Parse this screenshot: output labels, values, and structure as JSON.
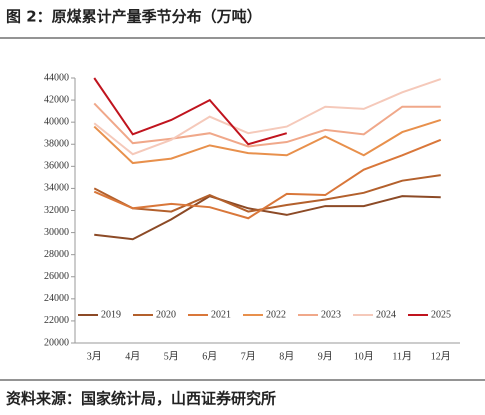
{
  "chart_data": {
    "type": "line",
    "title": "图 2：原煤累计产量季节分布（万吨）",
    "source": "资料来源：国家统计局，山西证券研究所",
    "categories": [
      "3月",
      "4月",
      "5月",
      "6月",
      "7月",
      "8月",
      "9月",
      "10月",
      "11月",
      "12月"
    ],
    "series": [
      {
        "name": "2019",
        "color": "#8c4a26",
        "values": [
          29800,
          29400,
          31200,
          33300,
          32200,
          31600,
          32400,
          32400,
          33300,
          33200
        ]
      },
      {
        "name": "2020",
        "color": "#b3602c",
        "values": [
          34000,
          32200,
          31900,
          33400,
          31900,
          32500,
          33000,
          33600,
          34700,
          35200
        ]
      },
      {
        "name": "2021",
        "color": "#d9773a",
        "values": [
          33700,
          32200,
          32600,
          32300,
          31300,
          33500,
          33400,
          35700,
          37000,
          38400
        ]
      },
      {
        "name": "2022",
        "color": "#e8904c",
        "values": [
          39600,
          36300,
          36700,
          37900,
          37200,
          37000,
          38700,
          37000,
          39100,
          40200
        ]
      },
      {
        "name": "2023",
        "color": "#f0a88a",
        "values": [
          41700,
          38100,
          38500,
          39000,
          37800,
          38200,
          39300,
          38900,
          41400,
          41400
        ]
      },
      {
        "name": "2024",
        "color": "#f5c9ba",
        "values": [
          39900,
          37100,
          38400,
          40500,
          39000,
          39600,
          41400,
          41200,
          42700,
          43900
        ]
      },
      {
        "name": "2025",
        "color": "#c0141e",
        "values": [
          44000,
          38900,
          40200,
          42000,
          38000,
          39000,
          null,
          null,
          null,
          null
        ]
      }
    ],
    "ylim": [
      20000,
      44000
    ],
    "yticks": [
      20000,
      22000,
      24000,
      26000,
      28000,
      30000,
      32000,
      34000,
      36000,
      38000,
      40000,
      42000,
      44000
    ]
  }
}
